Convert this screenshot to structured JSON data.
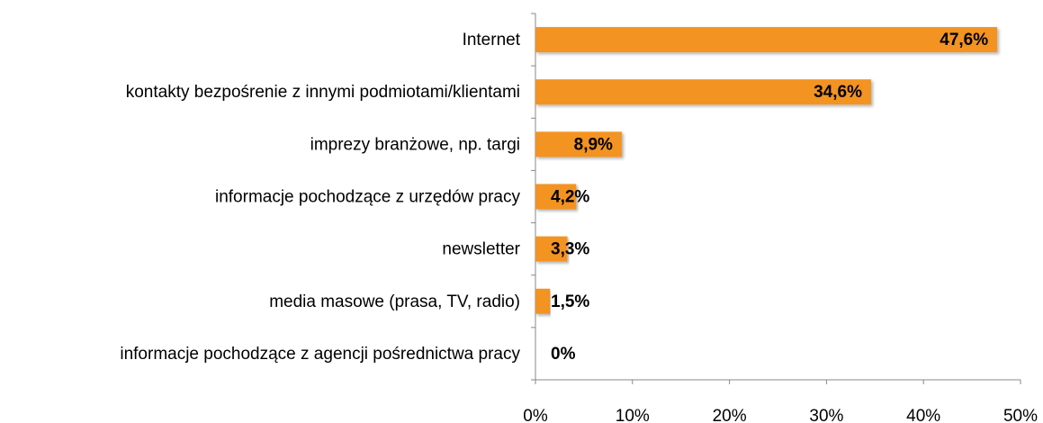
{
  "chart_data": {
    "type": "bar",
    "orientation": "horizontal",
    "categories": [
      "Internet",
      "kontakty bezpośrenie z innymi podmiotami/klientami",
      "imprezy branżowe, np. targi",
      "informacje pochodzące z urzędów pracy",
      "newsletter",
      "media masowe (prasa, TV, radio)",
      "informacje pochodzące z agencji pośrednictwa pracy"
    ],
    "values": [
      47.6,
      34.6,
      8.9,
      4.2,
      3.3,
      1.5,
      0
    ],
    "value_labels": [
      "47,6%",
      "34,6%",
      "8,9%",
      "4,2%",
      "3,3%",
      "1,5%",
      "0%"
    ],
    "color": "#f39322",
    "xlim": [
      0,
      50
    ],
    "xticks": [
      {
        "value": 0,
        "label": "0%"
      },
      {
        "value": 10,
        "label": "10%"
      },
      {
        "value": 20,
        "label": "20%"
      },
      {
        "value": 30,
        "label": "30%"
      },
      {
        "value": 40,
        "label": "40%"
      },
      {
        "value": 50,
        "label": "50%"
      }
    ]
  }
}
